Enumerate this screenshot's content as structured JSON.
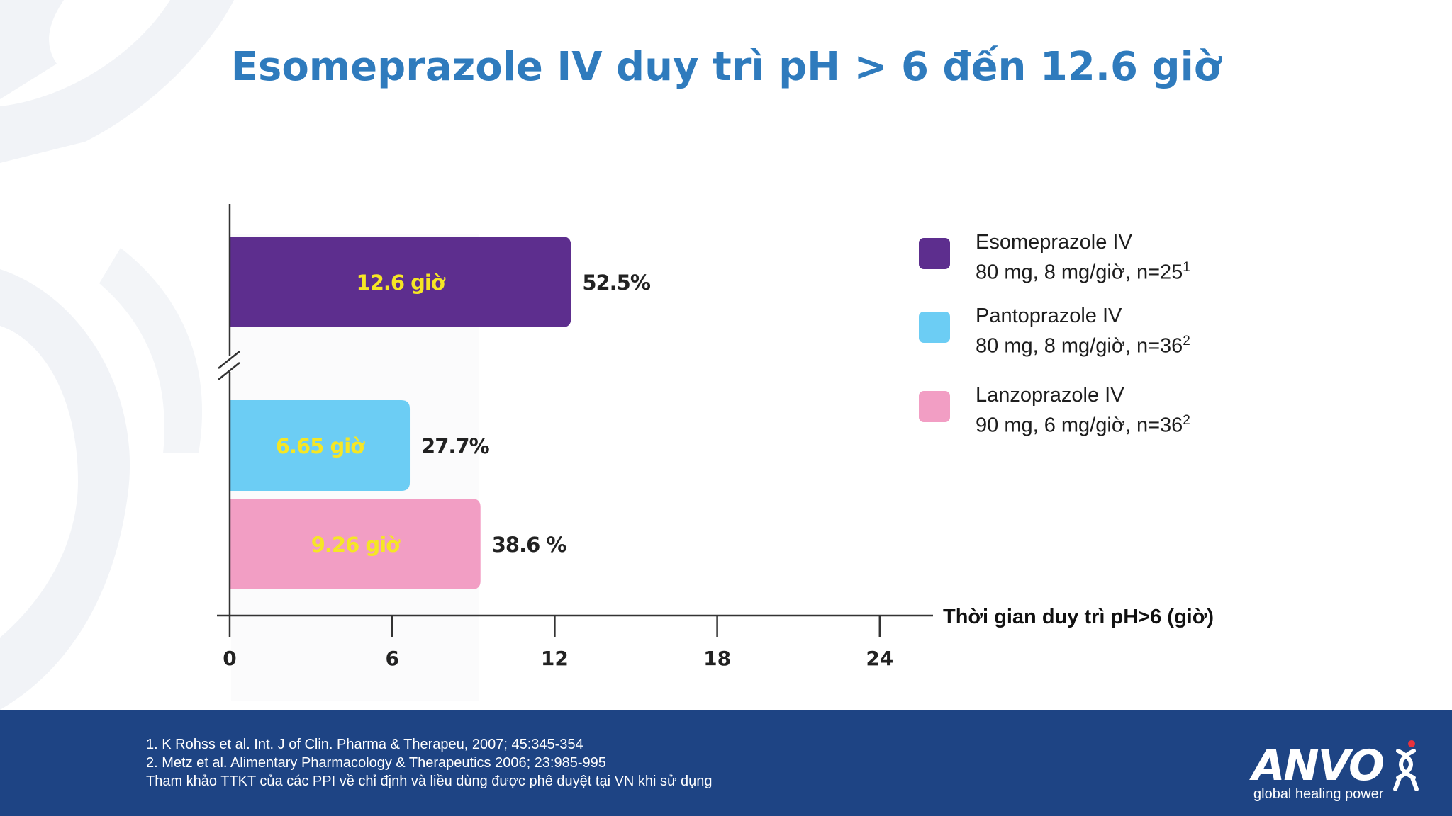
{
  "slide_title": "Esomeprazole IV duy trì pH > 6 đến 12.6 giờ",
  "chart_data": {
    "type": "bar",
    "orientation": "horizontal",
    "x_axis_label": "Thời gian duy trì pH>6 (giờ)",
    "x_ticks": [
      0,
      6,
      12,
      18,
      24
    ],
    "xlim": [
      0,
      24
    ],
    "axis_break": true,
    "bars": [
      {
        "value": 12.6,
        "inner_label": "12.6 giờ",
        "outer_label": "52.5%",
        "color": "#5d2e8e"
      },
      {
        "value": 6.65,
        "inner_label": "6.65 giờ",
        "outer_label": "27.7%",
        "color": "#6ccdf4"
      },
      {
        "value": 9.26,
        "inner_label": "9.26 giờ",
        "outer_label": "38.6 %",
        "color": "#f29ec4"
      }
    ],
    "inner_label_color": "#f5e625"
  },
  "legend": [
    {
      "line1": "Esomeprazole IV",
      "line2": "80 mg, 8 mg/giờ, n=25",
      "sup": "1",
      "color": "#5d2e8e"
    },
    {
      "line1": "Pantoprazole IV",
      "line2": "80 mg, 8 mg/giờ, n=36",
      "sup": "2",
      "color": "#6ccdf4"
    },
    {
      "line1": "Lanzoprazole IV",
      "line2": "90 mg, 6 mg/giờ, n=36",
      "sup": "2",
      "color": "#f29ec4"
    }
  ],
  "footer": {
    "references": [
      "1. K Rohss et al. Int. J of Clin. Pharma & Therapeu, 2007; 45:345-354",
      "2. Metz et al. Alimentary Pharmacology & Therapeutics 2006; 23:985-995",
      "Tham khảo TTKT của các PPI về chỉ định và liều dùng được phê duyệt tại VN khi sử dụng"
    ],
    "brand": "ANVO",
    "tagline": "global healing power"
  }
}
